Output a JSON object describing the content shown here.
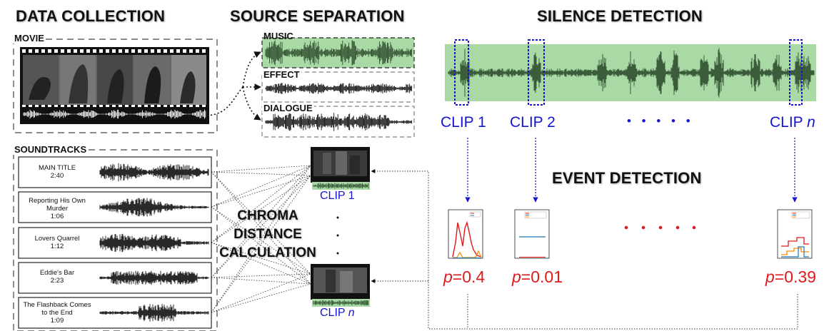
{
  "sections": {
    "data_collection": "DATA COLLECTION",
    "source_separation": "SOURCE SEPARATION",
    "silence_detection": "SILENCE DETECTION",
    "event_detection": "EVENT DETECTION"
  },
  "movie": {
    "label": "MOVIE"
  },
  "soundtracks": {
    "label": "SOUNDTRACKS",
    "tracks": [
      {
        "title": "MAIN TITLE",
        "duration": "2:40"
      },
      {
        "title": "Reporting His Own Murder",
        "duration": "1:06"
      },
      {
        "title": "Lovers Quarrel",
        "duration": "1:12"
      },
      {
        "title": "Eddie's Bar",
        "duration": "2:23"
      },
      {
        "title": "The Flashback Comes to the End",
        "duration": "1:09"
      }
    ]
  },
  "stems": [
    "MUSIC",
    "EFFECT",
    "DIALOGUE"
  ],
  "chroma": [
    "CHROMA",
    "DISTANCE",
    "CALCULATION"
  ],
  "clips": {
    "clip1": "CLIP 1",
    "clip2": "CLIP 2",
    "clipn_prefix": "CLIP",
    "clipn_var": "n",
    "ellipsis": "• • • • •"
  },
  "pvalues": {
    "symbol": "p",
    "clip1": "=0.4",
    "clip2": "=0.01",
    "clipn": "=0.39"
  },
  "colors": {
    "accent_blue": "#1515d0",
    "accent_red": "#e01a1a",
    "wave_green": "#2f4f2f",
    "green_fill": "#a9d9a4"
  }
}
